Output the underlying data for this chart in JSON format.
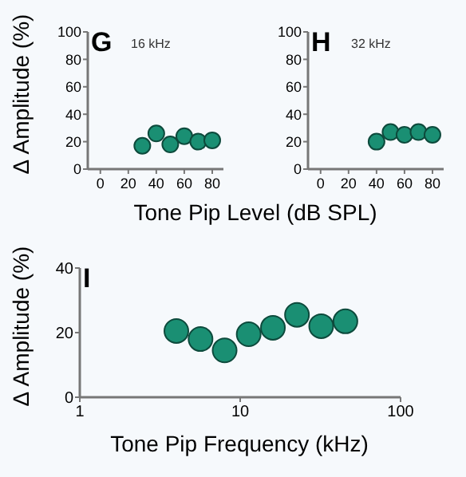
{
  "chart_data": [
    {
      "type": "scatter",
      "title": "G",
      "subtitle": "16 kHz",
      "ylabel": "Δ Amplitude (%)",
      "xlabel": "Tone Pip Level (dB SPL)",
      "x": [
        30,
        40,
        50,
        60,
        70,
        80
      ],
      "values": [
        17,
        26,
        18,
        24,
        20,
        21
      ],
      "color": "#1a8f73",
      "marker": "circle",
      "xlim": [
        -9,
        88
      ],
      "xticks": [
        0,
        20,
        40,
        60,
        80
      ],
      "ylim": [
        0,
        100
      ],
      "yticks": [
        0,
        20,
        40,
        60,
        80,
        100
      ]
    },
    {
      "type": "scatter",
      "title": "H",
      "subtitle": "32 kHz",
      "x": [
        40,
        50,
        60,
        70,
        80
      ],
      "values": [
        20,
        27,
        25,
        27,
        25
      ],
      "color": "#1a8f73",
      "marker": "circle",
      "xlim": [
        -9,
        88
      ],
      "xticks": [
        0,
        20,
        40,
        60,
        80
      ],
      "ylim": [
        0,
        100
      ],
      "yticks": [
        0,
        20,
        40,
        60,
        80,
        100
      ]
    },
    {
      "type": "scatter",
      "title": "I",
      "ylabel": "Δ Amplitude (%)",
      "xlabel": "Tone Pip Frequency (kHz)",
      "x": [
        4,
        5.66,
        8,
        11.3,
        16,
        22.6,
        32,
        45.3
      ],
      "values": [
        20.5,
        18,
        14.5,
        19.5,
        21.5,
        25.5,
        22,
        23.5
      ],
      "color": "#1a8f73",
      "marker": "circle",
      "log": "x",
      "xlim": [
        1,
        100
      ],
      "xticks": [
        1,
        10,
        100
      ],
      "ylim": [
        0,
        40
      ],
      "yticks": [
        0,
        20,
        40
      ]
    }
  ]
}
